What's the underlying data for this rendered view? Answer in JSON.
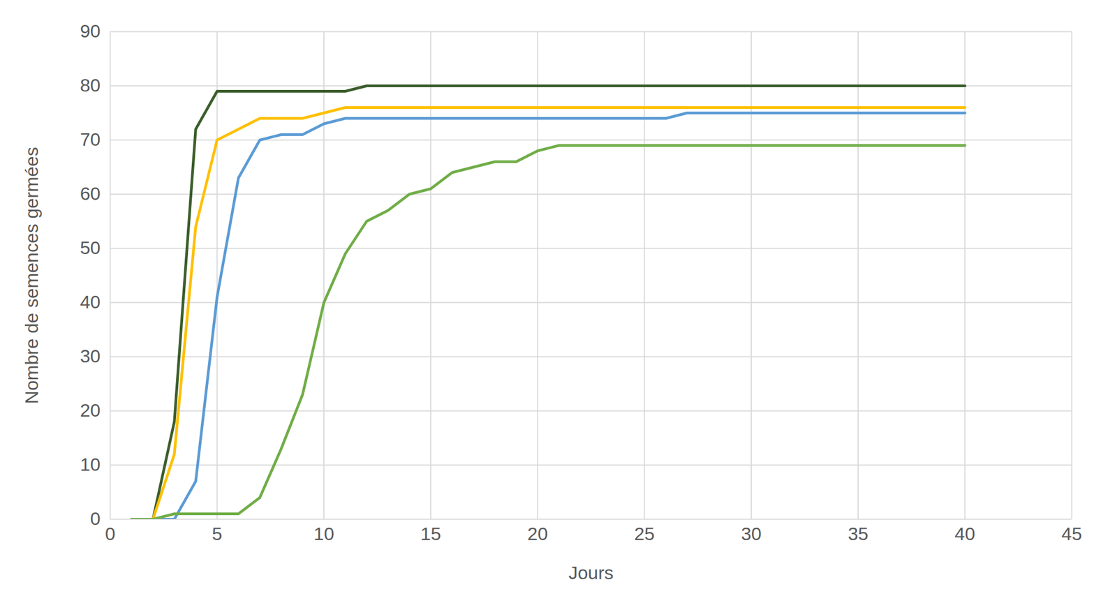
{
  "chart_data": {
    "type": "line",
    "x_label": "Jours",
    "y_label": "Nombre de semences germées",
    "x": [
      1,
      2,
      3,
      4,
      5,
      6,
      7,
      8,
      9,
      10,
      11,
      12,
      13,
      14,
      15,
      16,
      17,
      18,
      19,
      20,
      21,
      22,
      23,
      24,
      25,
      26,
      27,
      28,
      29,
      30,
      31,
      32,
      33,
      34,
      35,
      36,
      37,
      38,
      39,
      40
    ],
    "series": [
      {
        "color": "#3b5e2b",
        "values": [
          0,
          0,
          18,
          72,
          79,
          79,
          79,
          79,
          79,
          79,
          79,
          80,
          80,
          80,
          80,
          80,
          80,
          80,
          80,
          80,
          80,
          80,
          80,
          80,
          80,
          80,
          80,
          80,
          80,
          80,
          80,
          80,
          80,
          80,
          80,
          80,
          80,
          80,
          80,
          80
        ]
      },
      {
        "color": "#ffc000",
        "values": [
          0,
          0,
          12,
          54,
          70,
          72,
          74,
          74,
          74,
          75,
          76,
          76,
          76,
          76,
          76,
          76,
          76,
          76,
          76,
          76,
          76,
          76,
          76,
          76,
          76,
          76,
          76,
          76,
          76,
          76,
          76,
          76,
          76,
          76,
          76,
          76,
          76,
          76,
          76,
          76
        ]
      },
      {
        "color": "#5b9bd5",
        "values": [
          0,
          0,
          0,
          7,
          41,
          63,
          70,
          71,
          71,
          73,
          74,
          74,
          74,
          74,
          74,
          74,
          74,
          74,
          74,
          74,
          74,
          74,
          74,
          74,
          74,
          74,
          75,
          75,
          75,
          75,
          75,
          75,
          75,
          75,
          75,
          75,
          75,
          75,
          75,
          75
        ]
      },
      {
        "color": "#70ad47",
        "values": [
          0,
          0,
          1,
          1,
          1,
          1,
          4,
          13,
          23,
          40,
          49,
          55,
          57,
          60,
          61,
          64,
          65,
          66,
          66,
          68,
          69,
          69,
          69,
          69,
          69,
          69,
          69,
          69,
          69,
          69,
          69,
          69,
          69,
          69,
          69,
          69,
          69,
          69,
          69,
          69
        ]
      }
    ],
    "xlim": [
      0,
      45
    ],
    "xticks": [
      0,
      5,
      10,
      15,
      20,
      25,
      30,
      35,
      40,
      45
    ],
    "ylim": [
      0,
      90
    ],
    "yticks": [
      0,
      10,
      20,
      30,
      40,
      50,
      60,
      70,
      80,
      90
    ],
    "grid": true
  }
}
